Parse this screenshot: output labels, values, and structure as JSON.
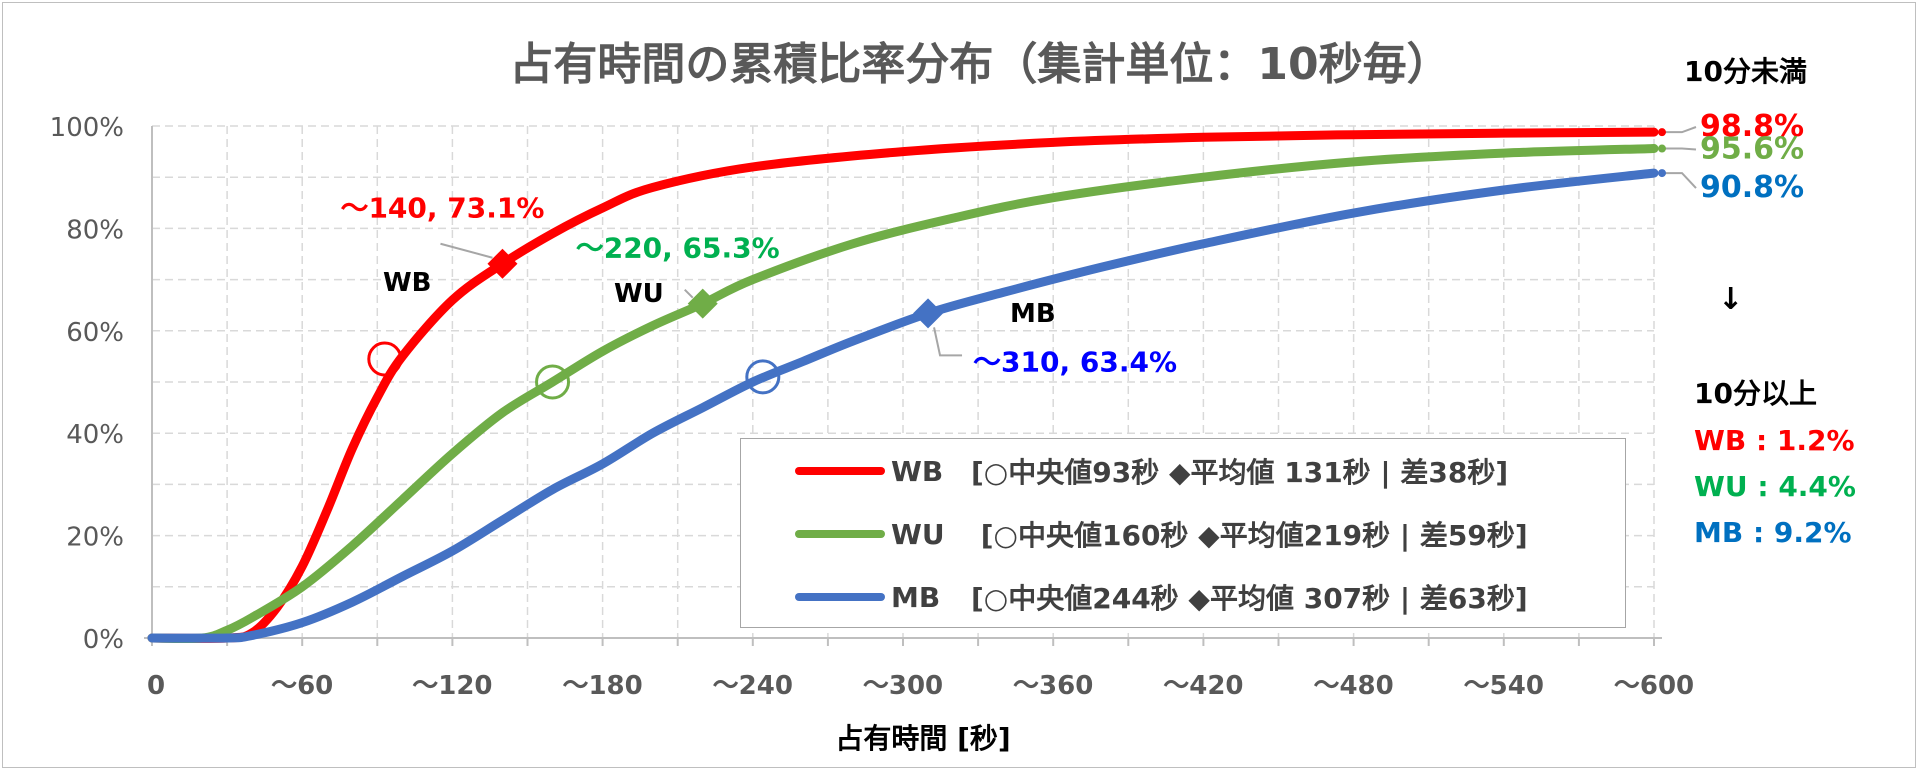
{
  "title": "占有時間の累積比率分布（集計単位：10秒毎）",
  "chart_data": {
    "type": "line",
    "xlabel": "占有時間 [秒]",
    "ylabel": "",
    "xlim": [
      0,
      600
    ],
    "ylim": [
      0,
      100
    ],
    "x_tick_labels": [
      "0",
      "〜60",
      "〜120",
      "〜180",
      "〜240",
      "〜300",
      "〜360",
      "〜420",
      "〜480",
      "〜540",
      "〜600"
    ],
    "y_tick_labels": [
      "0%",
      "20%",
      "40%",
      "60%",
      "80%",
      "100%"
    ],
    "grid": true,
    "legend_position": "bottom-right",
    "series": [
      {
        "name": "WB",
        "color": "#ff0000",
        "x": [
          0,
          30,
          40,
          50,
          60,
          70,
          80,
          90,
          100,
          120,
          140,
          160,
          180,
          200,
          240,
          300,
          360,
          420,
          480,
          540,
          600
        ],
        "values": [
          0,
          0,
          1,
          6,
          14,
          25,
          37,
          47,
          55,
          66,
          73.1,
          79,
          84,
          88,
          92,
          95,
          96.8,
          97.8,
          98.3,
          98.6,
          98.8
        ]
      },
      {
        "name": "WU",
        "color": "#70ad47",
        "x": [
          0,
          20,
          30,
          40,
          60,
          80,
          100,
          120,
          140,
          160,
          180,
          200,
          220,
          240,
          280,
          320,
          360,
          420,
          480,
          540,
          600
        ],
        "values": [
          0,
          0,
          1.5,
          4,
          10,
          18,
          27,
          36,
          44,
          50,
          56,
          61,
          65.3,
          70,
          77,
          82,
          86,
          90,
          93,
          94.7,
          95.6
        ]
      },
      {
        "name": "MB",
        "color": "#4472c4",
        "x": [
          0,
          30,
          40,
          60,
          80,
          100,
          120,
          140,
          160,
          180,
          200,
          220,
          240,
          260,
          280,
          310,
          340,
          380,
          420,
          480,
          540,
          600
        ],
        "values": [
          0,
          0,
          0.5,
          3,
          7,
          12,
          17,
          23,
          29,
          34,
          40,
          45,
          50,
          54,
          58,
          63.4,
          67.5,
          72.5,
          77,
          83,
          87.5,
          90.8
        ]
      }
    ],
    "median_markers": [
      {
        "series": "WB",
        "x": 93,
        "y": 54.5
      },
      {
        "series": "WU",
        "x": 160,
        "y": 50
      },
      {
        "series": "MB",
        "x": 244,
        "y": 51
      }
    ],
    "mean_markers": [
      {
        "series": "WB",
        "x": 140,
        "y": 73.1,
        "label": "〜140, 73.1%",
        "color": "#ff0000"
      },
      {
        "series": "WU",
        "x": 220,
        "y": 65.3,
        "label": "〜220, 65.3%",
        "color": "#00b050"
      },
      {
        "series": "MB",
        "x": 310,
        "y": 63.4,
        "label": "〜310, 63.4%",
        "color": "#0000ff"
      }
    ],
    "series_tags": [
      {
        "text": "WB",
        "series": "WB"
      },
      {
        "text": "WU",
        "series": "WU"
      },
      {
        "text": "MB",
        "series": "MB"
      }
    ],
    "end_labels": [
      {
        "text": "98.8%",
        "value": 98.8,
        "color": "#ff0000"
      },
      {
        "text": "95.6%",
        "value": 95.6,
        "color": "#70ad47"
      },
      {
        "text": "90.8%",
        "value": 90.8,
        "color": "#0070c0"
      }
    ],
    "legend": [
      {
        "name": "WB",
        "text": "[○中央値93秒 ◆平均値 131秒 | 差38秒]",
        "color": "#ff0000"
      },
      {
        "name": "WU",
        "text": " [○中央値160秒 ◆平均値219秒 | 差59秒]",
        "color": "#70ad47"
      },
      {
        "name": "MB",
        "text": "[○中央値244秒 ◆平均値 307秒 | 差63秒]",
        "color": "#4472c4"
      }
    ]
  },
  "side_panel": {
    "under_label": "10分未満",
    "arrow": "↓",
    "over_label": "10分以上",
    "over_items": [
      {
        "text": "WB : 1.2%",
        "color": "#ff0000"
      },
      {
        "text": "WU : 4.4%",
        "color": "#00b050"
      },
      {
        "text": "MB : 9.2%",
        "color": "#0070c0"
      }
    ]
  }
}
